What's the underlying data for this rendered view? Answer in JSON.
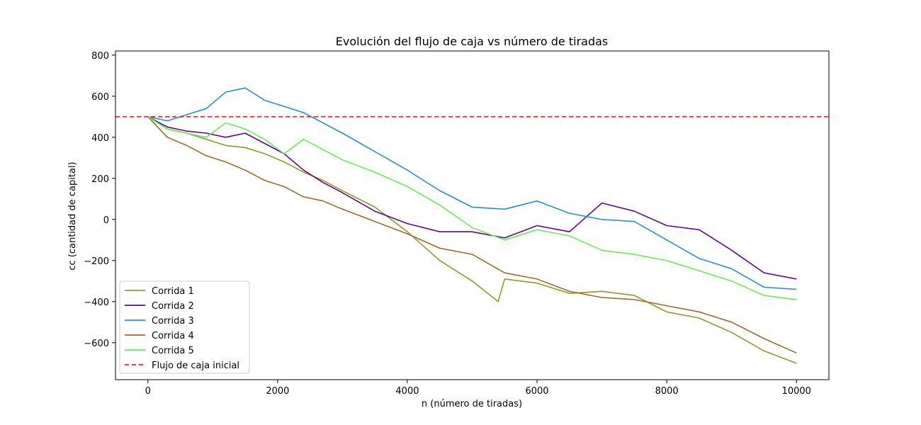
{
  "chart_data": {
    "type": "line",
    "title": "Evolución del flujo de caja vs número de tiradas",
    "xlabel": "n (número de tiradas)",
    "ylabel": "cc (cantidad de capital)",
    "xlim": [
      -500,
      10500
    ],
    "ylim": [
      -780,
      820
    ],
    "xticks": [
      0,
      2000,
      4000,
      6000,
      8000,
      10000
    ],
    "xtick_labels": [
      "0",
      "2000",
      "4000",
      "6000",
      "8000",
      "10000"
    ],
    "yticks": [
      -600,
      -400,
      -200,
      0,
      200,
      400,
      600,
      800
    ],
    "ytick_labels": [
      "−600",
      "−400",
      "−200",
      "0",
      "200",
      "400",
      "600",
      "800"
    ],
    "grid": false,
    "legend_position": "lower-left",
    "reference_line": {
      "name": "Flujo de caja inicial",
      "y": 500,
      "color": "#d62728",
      "style": "dashed"
    },
    "series": [
      {
        "name": "Corrida 1",
        "color": "#8c9a2e",
        "x": [
          0,
          300,
          600,
          900,
          1200,
          1500,
          1800,
          2100,
          2400,
          2700,
          3000,
          3500,
          4000,
          4500,
          5000,
          5400,
          5500,
          6000,
          6500,
          7000,
          7500,
          8000,
          8500,
          9000,
          9500,
          10000
        ],
        "y": [
          500,
          440,
          420,
          390,
          360,
          350,
          320,
          280,
          230,
          190,
          140,
          60,
          -60,
          -200,
          -300,
          -400,
          -290,
          -310,
          -360,
          -350,
          -370,
          -450,
          -480,
          -550,
          -640,
          -700
        ]
      },
      {
        "name": "Corrida 2",
        "color": "#5c0a80",
        "x": [
          0,
          300,
          600,
          900,
          1200,
          1500,
          1800,
          2100,
          2400,
          2700,
          3000,
          3500,
          4000,
          4500,
          5000,
          5500,
          6000,
          6500,
          7000,
          7500,
          8000,
          8500,
          9000,
          9500,
          10000
        ],
        "y": [
          500,
          450,
          430,
          420,
          400,
          420,
          370,
          320,
          240,
          180,
          130,
          40,
          -20,
          -60,
          -60,
          -90,
          -30,
          -60,
          80,
          40,
          -30,
          -50,
          -150,
          -260,
          -290
        ]
      },
      {
        "name": "Corrida 3",
        "color": "#2d8fbf",
        "x": [
          0,
          300,
          600,
          900,
          1200,
          1500,
          1800,
          2100,
          2400,
          2700,
          3000,
          3500,
          4000,
          4500,
          5000,
          5500,
          6000,
          6500,
          7000,
          7500,
          8000,
          8500,
          9000,
          9500,
          10000
        ],
        "y": [
          500,
          480,
          510,
          540,
          620,
          640,
          580,
          550,
          520,
          470,
          420,
          330,
          240,
          140,
          60,
          50,
          90,
          30,
          0,
          -10,
          -100,
          -190,
          -240,
          -330,
          -340
        ]
      },
      {
        "name": "Corrida 4",
        "color": "#9a6a2e",
        "x": [
          0,
          300,
          600,
          900,
          1200,
          1500,
          1800,
          2100,
          2400,
          2700,
          3000,
          3500,
          4000,
          4500,
          5000,
          5500,
          6000,
          6500,
          7000,
          7500,
          8000,
          8500,
          9000,
          9500,
          10000
        ],
        "y": [
          500,
          400,
          360,
          310,
          280,
          240,
          190,
          160,
          110,
          90,
          50,
          -10,
          -70,
          -140,
          -170,
          -260,
          -290,
          -350,
          -380,
          -390,
          -420,
          -450,
          -500,
          -580,
          -650
        ]
      },
      {
        "name": "Corrida 5",
        "color": "#6ee85e",
        "x": [
          0,
          300,
          600,
          900,
          1200,
          1500,
          1800,
          2100,
          2400,
          2700,
          3000,
          3500,
          4000,
          4500,
          5000,
          5500,
          6000,
          6500,
          7000,
          7500,
          8000,
          8500,
          9000,
          9500,
          10000
        ],
        "y": [
          500,
          440,
          420,
          400,
          470,
          440,
          390,
          320,
          390,
          340,
          290,
          230,
          160,
          70,
          -40,
          -100,
          -50,
          -80,
          -150,
          -170,
          -200,
          -250,
          -300,
          -370,
          -390
        ]
      }
    ]
  }
}
